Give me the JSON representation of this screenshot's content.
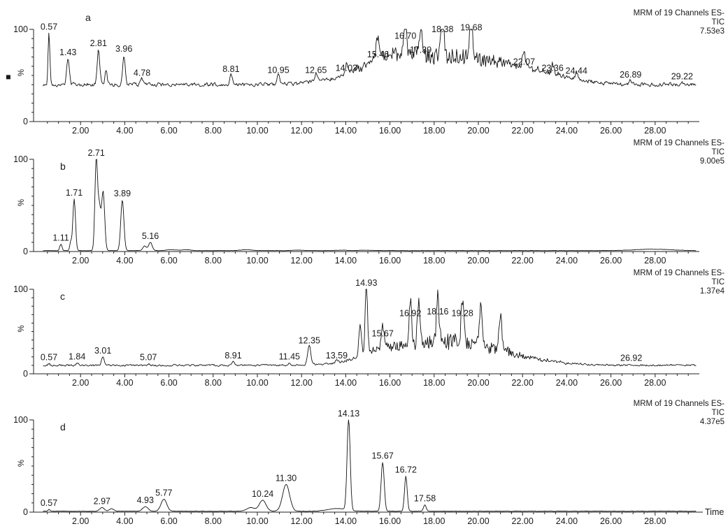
{
  "figure": {
    "header_line1": "MRM of 19 Channels ES-",
    "header_line2": "TIC",
    "x_axis_title": "Time",
    "legend_marker": "■"
  },
  "chart_data": [
    {
      "type": "line",
      "panel": "a",
      "title": "MRM of 19 Channels ES-",
      "subtitle": "TIC",
      "intensity": "7.53e3",
      "ylabel": "%",
      "ylim": [
        0,
        100
      ],
      "y_ticks": [
        "0",
        "100"
      ],
      "xlim": [
        0,
        30
      ],
      "x_ticks": [
        "2.00",
        "4.00",
        "6.00",
        "8.00",
        "10.00",
        "12.00",
        "14.00",
        "16.00",
        "18.00",
        "20.00",
        "22.00",
        "24.00",
        "26.00",
        "28.00"
      ],
      "baseline": 40,
      "noise": 3,
      "peaks": [
        {
          "t": 0.57,
          "label": "0.57",
          "height": 96,
          "width": 0.04
        },
        {
          "t": 1.43,
          "label": "1.43",
          "height": 68,
          "width": 0.06
        },
        {
          "t": 2.81,
          "label": "2.81",
          "height": 78,
          "width": 0.06
        },
        {
          "t": 3.15,
          "label": "",
          "height": 56,
          "width": 0.05
        },
        {
          "t": 3.96,
          "label": "3.96",
          "height": 72,
          "width": 0.06
        },
        {
          "t": 4.78,
          "label": "4.78",
          "height": 46,
          "width": 0.05
        },
        {
          "t": 8.81,
          "label": "8.81",
          "height": 50,
          "width": 0.06
        },
        {
          "t": 10.95,
          "label": "10.95",
          "height": 49,
          "width": 0.06
        },
        {
          "t": 12.65,
          "label": "12.65",
          "height": 49,
          "width": 0.06
        },
        {
          "t": 14.03,
          "label": "14.03",
          "height": 51,
          "width": 0.06
        },
        {
          "t": 15.46,
          "label": "15.46",
          "height": 66,
          "width": 0.08
        },
        {
          "t": 16.7,
          "label": "16.70",
          "height": 86,
          "width": 0.06
        },
        {
          "t": 17.39,
          "label": "17.39",
          "height": 71,
          "width": 0.06
        },
        {
          "t": 18.38,
          "label": "18.38",
          "height": 93,
          "width": 0.06
        },
        {
          "t": 19.68,
          "label": "19.68",
          "height": 95,
          "width": 0.06
        },
        {
          "t": 22.07,
          "label": "22.07",
          "height": 58,
          "width": 0.06
        },
        {
          "t": 23.36,
          "label": "23.36",
          "height": 51,
          "width": 0.05
        },
        {
          "t": 24.44,
          "label": "24.44",
          "height": 48,
          "width": 0.05
        },
        {
          "t": 26.89,
          "label": "26.89",
          "height": 44,
          "width": 0.05
        },
        {
          "t": 29.22,
          "label": "29.22",
          "height": 42,
          "width": 0.05
        }
      ],
      "humps": [
        {
          "t": 18.6,
          "height": 30,
          "width": 2.8
        },
        {
          "t": 15.8,
          "height": 12,
          "width": 1.2
        },
        {
          "t": 22.5,
          "height": 6,
          "width": 1.5
        }
      ],
      "hump_noise": 0.55
    },
    {
      "type": "line",
      "panel": "b",
      "title": "MRM of 19 Channels ES-",
      "subtitle": "TIC",
      "intensity": "9.00e5",
      "ylabel": "%",
      "ylim": [
        0,
        100
      ],
      "y_ticks": [
        "0",
        "100"
      ],
      "xlim": [
        0,
        30
      ],
      "x_ticks": [
        "2.00",
        "4.00",
        "6.00",
        "8.00",
        "10.00",
        "12.00",
        "14.00",
        "16.00",
        "18.00",
        "20.00",
        "22.00",
        "24.00",
        "26.00",
        "28.00"
      ],
      "baseline": 1,
      "noise": 0.2,
      "peaks": [
        {
          "t": 1.11,
          "label": "1.11",
          "height": 8,
          "width": 0.05
        },
        {
          "t": 1.55,
          "label": "",
          "height": 10,
          "width": 0.04
        },
        {
          "t": 1.71,
          "label": "1.71",
          "height": 57,
          "width": 0.06
        },
        {
          "t": 2.71,
          "label": "2.71",
          "height": 100,
          "width": 0.06
        },
        {
          "t": 2.85,
          "label": "",
          "height": 45,
          "width": 0.06
        },
        {
          "t": 3.02,
          "label": "",
          "height": 65,
          "width": 0.07
        },
        {
          "t": 3.89,
          "label": "3.89",
          "height": 56,
          "width": 0.07
        },
        {
          "t": 4.9,
          "label": "",
          "height": 6,
          "width": 0.08
        },
        {
          "t": 5.16,
          "label": "5.16",
          "height": 10,
          "width": 0.08
        },
        {
          "t": 6.1,
          "label": "",
          "height": 2,
          "width": 0.2
        },
        {
          "t": 6.8,
          "label": "",
          "height": 2,
          "width": 0.2
        },
        {
          "t": 9.5,
          "label": "",
          "height": 2,
          "width": 0.25
        },
        {
          "t": 11.8,
          "label": "",
          "height": 1.5,
          "width": 0.25
        },
        {
          "t": 13.8,
          "label": "",
          "height": 1.5,
          "width": 0.25
        },
        {
          "t": 14.9,
          "label": "",
          "height": 1.5,
          "width": 0.25
        }
      ],
      "humps": [
        {
          "t": 27.9,
          "height": 1.5,
          "width": 0.8
        }
      ],
      "hump_noise": 0
    },
    {
      "type": "line",
      "panel": "c",
      "title": "MRM of 19 Channels ES-",
      "subtitle": "TIC",
      "intensity": "1.37e4",
      "ylabel": "%",
      "ylim": [
        0,
        100
      ],
      "y_ticks": [
        "0",
        "100"
      ],
      "xlim": [
        0,
        30
      ],
      "x_ticks": [
        "2.00",
        "4.00",
        "6.00",
        "8.00",
        "10.00",
        "12.00",
        "14.00",
        "16.00",
        "18.00",
        "20.00",
        "22.00",
        "24.00",
        "26.00",
        "28.00"
      ],
      "baseline": 10,
      "noise": 1.5,
      "peaks": [
        {
          "t": 0.57,
          "label": "0.57",
          "height": 12,
          "width": 0.04
        },
        {
          "t": 1.84,
          "label": "1.84",
          "height": 13,
          "width": 0.05
        },
        {
          "t": 3.01,
          "label": "3.01",
          "height": 20,
          "width": 0.06
        },
        {
          "t": 5.07,
          "label": "5.07",
          "height": 12,
          "width": 0.05
        },
        {
          "t": 8.91,
          "label": "8.91",
          "height": 14,
          "width": 0.05
        },
        {
          "t": 11.45,
          "label": "11.45",
          "height": 13,
          "width": 0.05
        },
        {
          "t": 12.35,
          "label": "12.35",
          "height": 32,
          "width": 0.07
        },
        {
          "t": 13.59,
          "label": "13.59",
          "height": 14,
          "width": 0.05
        },
        {
          "t": 14.65,
          "label": "",
          "height": 45,
          "width": 0.06
        },
        {
          "t": 14.93,
          "label": "14.93",
          "height": 100,
          "width": 0.05
        },
        {
          "t": 15.67,
          "label": "15.67",
          "height": 40,
          "width": 0.06
        },
        {
          "t": 16.92,
          "label": "16.92",
          "height": 64,
          "width": 0.06
        },
        {
          "t": 17.3,
          "label": "",
          "height": 60,
          "width": 0.06
        },
        {
          "t": 18.16,
          "label": "18.16",
          "height": 66,
          "width": 0.06
        },
        {
          "t": 19.28,
          "label": "19.28",
          "height": 64,
          "width": 0.06
        },
        {
          "t": 20.1,
          "label": "",
          "height": 58,
          "width": 0.06
        },
        {
          "t": 21.0,
          "label": "",
          "height": 50,
          "width": 0.07
        },
        {
          "t": 26.92,
          "label": "26.92",
          "height": 11,
          "width": 0.05
        },
        {
          "t": 28.7,
          "label": "",
          "height": 11,
          "width": 0.05
        }
      ],
      "humps": [
        {
          "t": 18.8,
          "height": 28,
          "width": 2.4
        },
        {
          "t": 15.6,
          "height": 10,
          "width": 0.8
        }
      ],
      "hump_noise": 0.7
    },
    {
      "type": "line",
      "panel": "d",
      "title": "MRM of 19 Channels ES-",
      "subtitle": "TIC",
      "intensity": "4.37e5",
      "ylabel": "%",
      "ylim": [
        0,
        100
      ],
      "y_ticks": [
        "0",
        "100"
      ],
      "xlim": [
        0,
        30
      ],
      "x_ticks": [
        "2.00",
        "4.00",
        "6.00",
        "8.00",
        "10.00",
        "12.00",
        "14.00",
        "16.00",
        "18.00",
        "20.00",
        "22.00",
        "24.00",
        "26.00",
        "28.00"
      ],
      "xlabel": "Time",
      "baseline": 1,
      "noise": 0.3,
      "peaks": [
        {
          "t": 0.57,
          "label": "0.57",
          "height": 3,
          "width": 0.04
        },
        {
          "t": 2.97,
          "label": "2.97",
          "height": 5,
          "width": 0.1
        },
        {
          "t": 3.4,
          "label": "",
          "height": 4,
          "width": 0.1
        },
        {
          "t": 4.93,
          "label": "4.93",
          "height": 6,
          "width": 0.12
        },
        {
          "t": 5.77,
          "label": "5.77",
          "height": 14,
          "width": 0.13
        },
        {
          "t": 9.7,
          "label": "",
          "height": 5,
          "width": 0.18
        },
        {
          "t": 10.24,
          "label": "10.24",
          "height": 13,
          "width": 0.15
        },
        {
          "t": 11.3,
          "label": "11.30",
          "height": 30,
          "width": 0.16
        },
        {
          "t": 14.13,
          "label": "14.13",
          "height": 100,
          "width": 0.07
        },
        {
          "t": 15.67,
          "label": "15.67",
          "height": 54,
          "width": 0.07
        },
        {
          "t": 16.72,
          "label": "16.72",
          "height": 39,
          "width": 0.06
        },
        {
          "t": 17.58,
          "label": "17.58",
          "height": 8,
          "width": 0.06
        }
      ],
      "humps": [
        {
          "t": 13.6,
          "height": 3,
          "width": 0.4
        }
      ],
      "hump_noise": 0
    }
  ]
}
